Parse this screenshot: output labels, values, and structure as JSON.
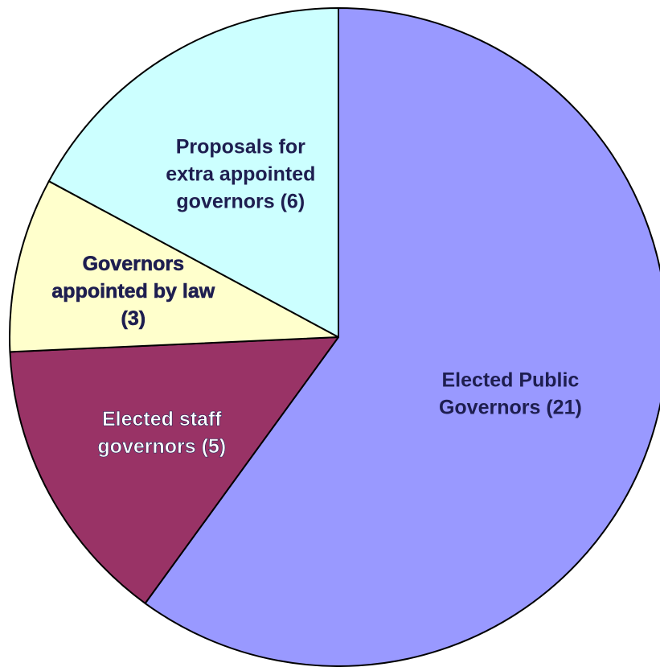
{
  "chart_data": {
    "type": "pie",
    "title": "",
    "start_angle_deg": 0,
    "direction": "clockwise",
    "slices": [
      {
        "label": "Elected Public Governors (21)",
        "label_lines": [
          "Elected Public",
          "Governors (21)"
        ],
        "value": 21,
        "color": "#9999ff",
        "label_color": "#1e1e50",
        "shadow": false
      },
      {
        "label": "Elected staff governors (5)",
        "label_lines": [
          "Elected staff",
          "governors (5)"
        ],
        "value": 5,
        "color": "#993366",
        "label_color": "#ffffff",
        "shadow": true
      },
      {
        "label": "Governors appointed by law (3)",
        "label_lines": [
          "Governors",
          "appointed by law",
          "(3)"
        ],
        "value": 3,
        "color": "#ffffcc",
        "label_color": "#1e1e50",
        "shadow": true
      },
      {
        "label": "Proposals for extra appointed governors (6)",
        "label_lines": [
          "Proposals for",
          "extra appointed",
          "governors (6)"
        ],
        "value": 6,
        "color": "#ccffff",
        "label_color": "#1e1e50",
        "shadow": false
      }
    ]
  }
}
